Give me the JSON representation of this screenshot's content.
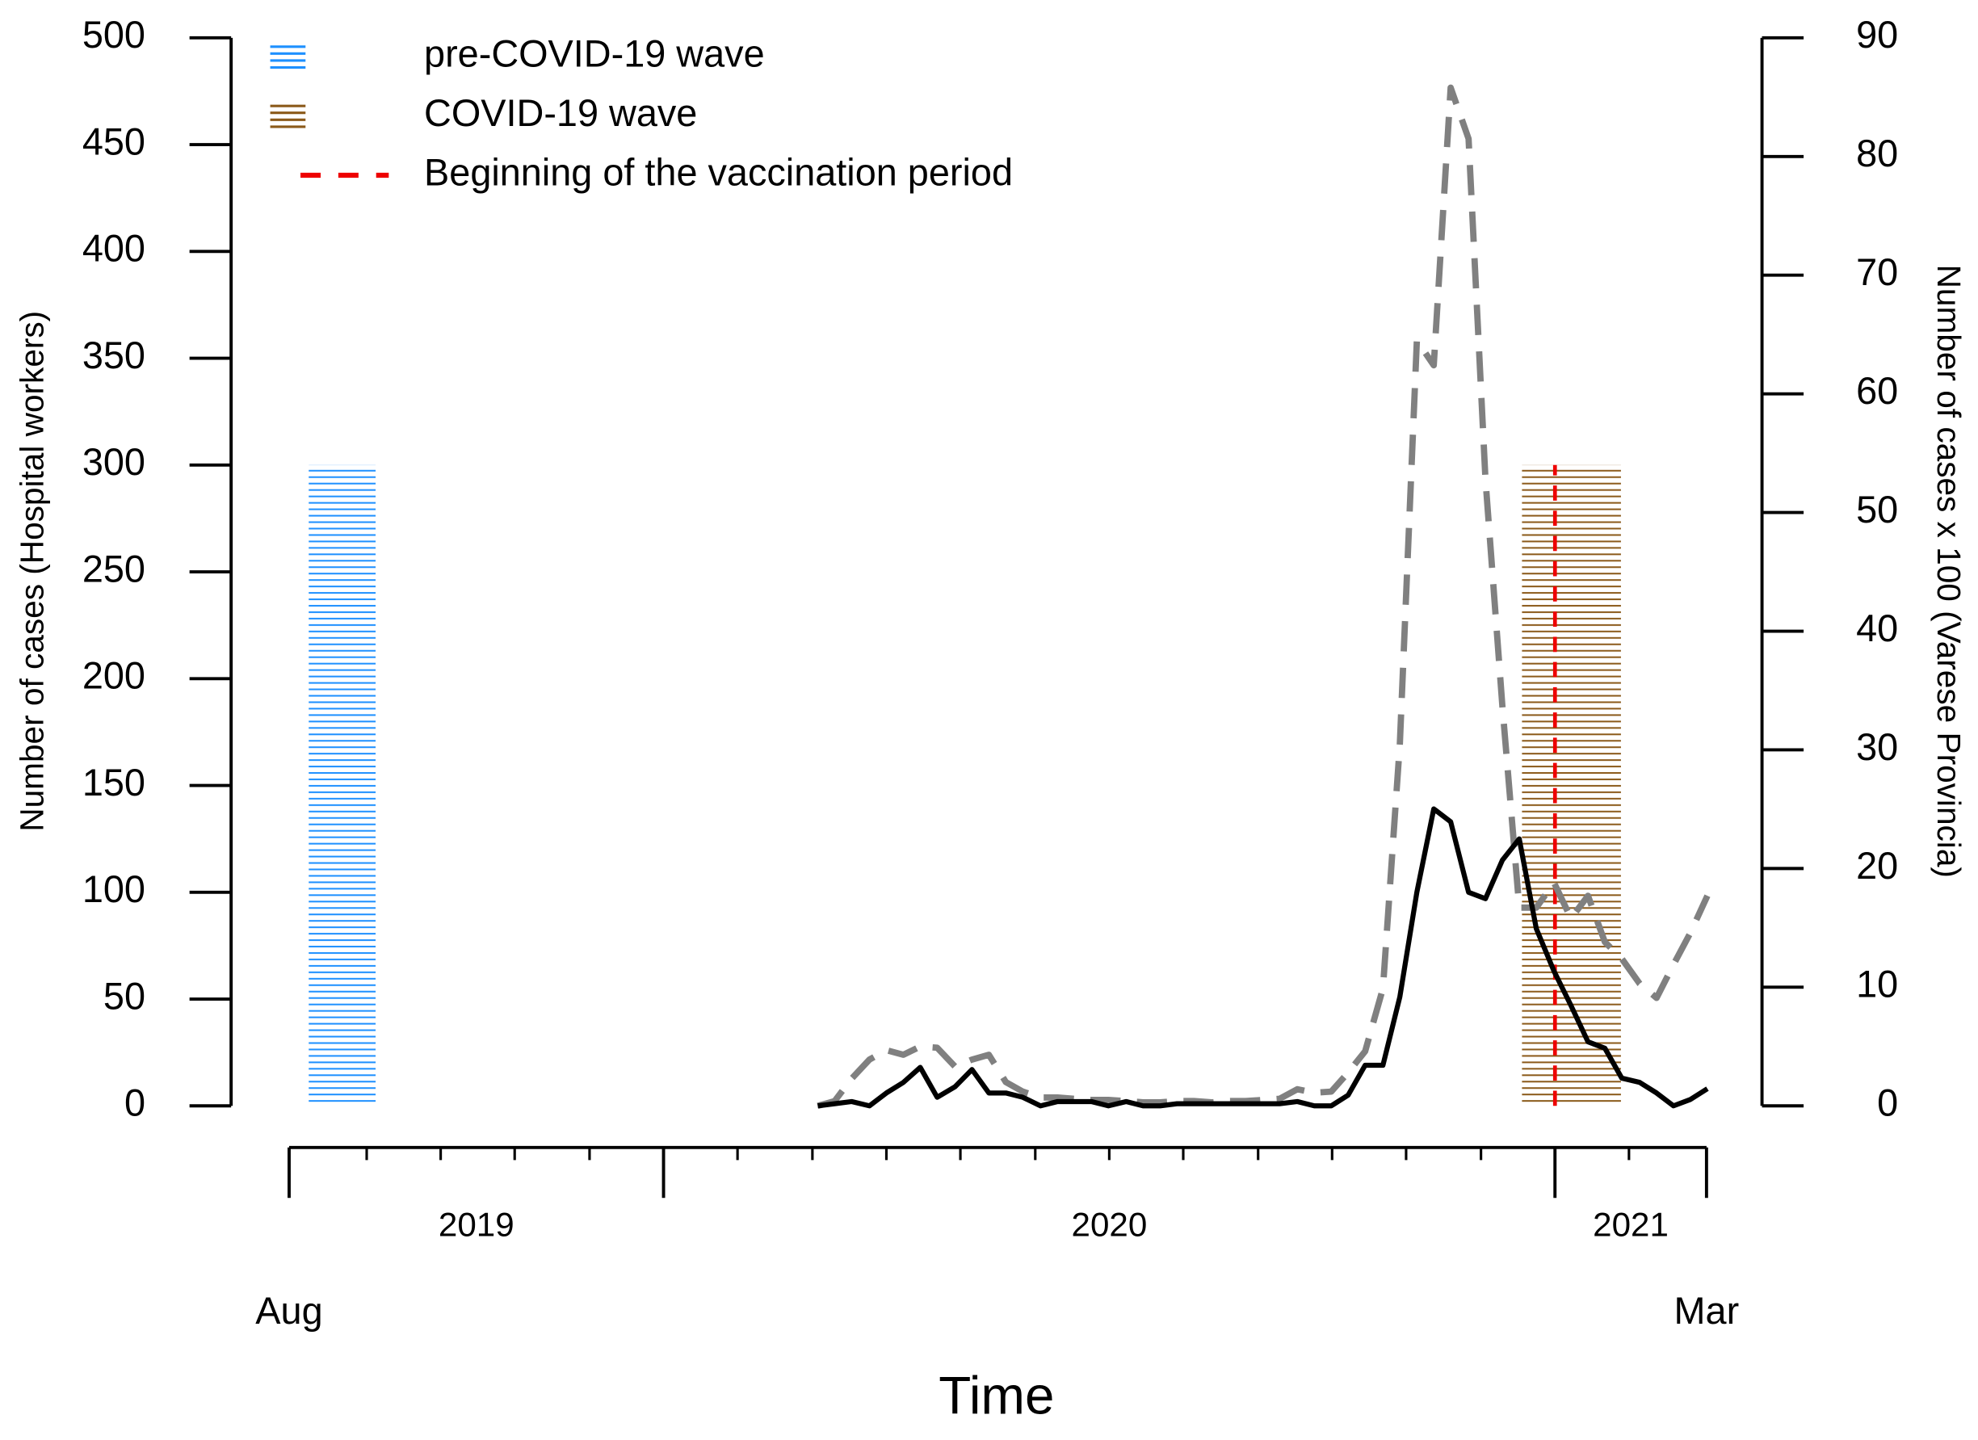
{
  "chart_data": {
    "type": "line",
    "xlabel": "Time",
    "ylabel": "Number of cases (Hospital workers)",
    "y2label": "Number of cases x 100 (Varese Provincia)",
    "xlim": [
      2019.58,
      2021.17
    ],
    "xticks": [
      {
        "value": 2019.58,
        "label": "Aug"
      },
      {
        "value": 2021.17,
        "label": "Mar"
      }
    ],
    "major_xticks": [
      2020,
      2021
    ],
    "minor_xticks": [
      2019.667,
      2019.75,
      2019.833,
      2019.917,
      2020.083,
      2020.167,
      2020.25,
      2020.333,
      2020.417,
      2020.5,
      2020.583,
      2020.667,
      2020.75,
      2020.833,
      2020.917,
      2021.083
    ],
    "year_ticks": [
      {
        "value": 2019.79,
        "label": "2019"
      },
      {
        "value": 2020.5,
        "label": "2020"
      },
      {
        "value": 2021.085,
        "label": "2021"
      }
    ],
    "ylim": [
      0,
      500
    ],
    "yticks": [
      0,
      50,
      100,
      150,
      200,
      250,
      300,
      350,
      400,
      450,
      500
    ],
    "y2lim": [
      0,
      90
    ],
    "y2ticks": [
      0,
      10,
      20,
      30,
      40,
      50,
      60,
      70,
      80,
      90
    ],
    "x": [
      2020.173,
      2020.192,
      2020.211,
      2020.231,
      2020.25,
      2020.269,
      2020.288,
      2020.307,
      2020.327,
      2020.346,
      2020.365,
      2020.384,
      2020.403,
      2020.423,
      2020.442,
      2020.461,
      2020.48,
      2020.499,
      2020.519,
      2020.538,
      2020.557,
      2020.576,
      2020.595,
      2020.615,
      2020.634,
      2020.653,
      2020.672,
      2020.691,
      2020.711,
      2020.73,
      2020.749,
      2020.768,
      2020.787,
      2020.807,
      2020.826,
      2020.845,
      2020.864,
      2020.883,
      2020.903,
      2020.922,
      2020.941,
      2020.96,
      2020.979,
      2020.999,
      2021.018,
      2021.037,
      2021.056,
      2021.075,
      2021.095,
      2021.114,
      2021.133,
      2021.152,
      2021.171
    ],
    "series": [
      {
        "color": "#000000",
        "dashed": false,
        "values": [
          0,
          1,
          2,
          0,
          6,
          11,
          18,
          4,
          9,
          17,
          6,
          6,
          4,
          0,
          2,
          2,
          2,
          0,
          2,
          0,
          0,
          1,
          1,
          1,
          1,
          1,
          1,
          1,
          2,
          0,
          0,
          5,
          19,
          19,
          51,
          100,
          139,
          133,
          100,
          97,
          115,
          125,
          83,
          63,
          47,
          30,
          27,
          13,
          11,
          6,
          0,
          3,
          8
        ]
      },
      {
        "color": "#808080",
        "dashed": true,
        "axis": "y2",
        "values": [
          0,
          0.4,
          2.3,
          3.9,
          4.7,
          4.3,
          5.0,
          4.9,
          3.3,
          3.9,
          4.3,
          2.0,
          1.2,
          0.7,
          0.7,
          0.6,
          0.5,
          0.5,
          0.4,
          0.3,
          0.3,
          0.4,
          0.4,
          0.3,
          0.4,
          0.4,
          0.5,
          0.6,
          1.4,
          1.1,
          1.2,
          2.8,
          4.6,
          9.9,
          30.5,
          64.5,
          62.4,
          85.8,
          81.5,
          52.8,
          33.7,
          16.7,
          16.7,
          18.8,
          15.8,
          17.7,
          13.8,
          12.4,
          10.3,
          9.1,
          11.9,
          14.6,
          17.7
        ]
      }
    ],
    "bands": [
      {
        "name": "pre-COVID-19 wave",
        "color": "#1e90ff",
        "x": [
          2019.602,
          2019.677
        ],
        "top": 300
      },
      {
        "name": "COVID-19 wave",
        "color": "#8b5a1a",
        "x": [
          2020.963,
          2021.074
        ],
        "top": 300
      }
    ],
    "vlines": [
      {
        "name": "Beginning of the vaccination period",
        "color": "#ee0000",
        "x": 2021.0,
        "top": 300
      }
    ]
  }
}
